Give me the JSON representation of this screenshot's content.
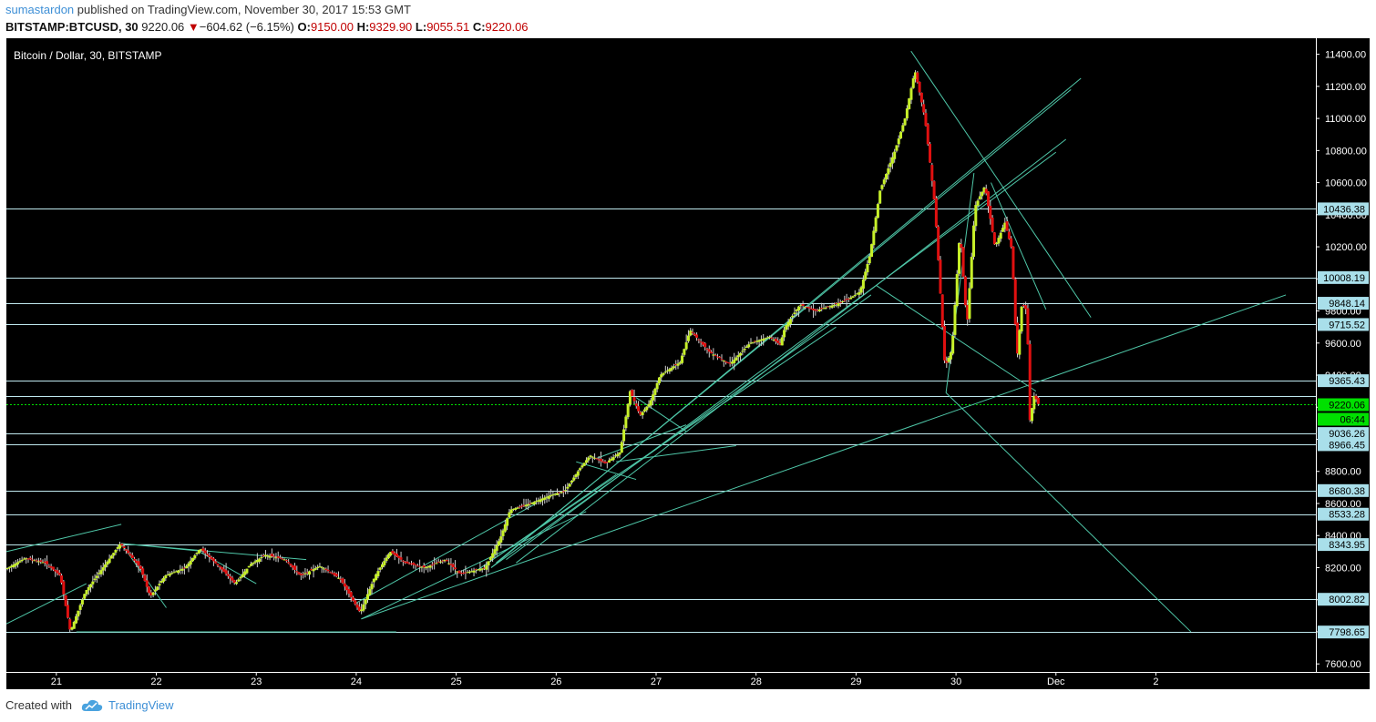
{
  "header": {
    "user": "sumastardon",
    "published_text": "published on TradingView.com, November 30, 2017 15:53 GMT",
    "symbol": "BITSTAMP:BTCUSD, 30",
    "last": "9220.06",
    "change_arrow": "▼",
    "change": "−604.62 (−6.15%)",
    "o_label": "O:",
    "o": "9150.00",
    "h_label": "H:",
    "h": "9329.90",
    "l_label": "L:",
    "l": "9055.51",
    "c_label": "C:",
    "c": "9220.06"
  },
  "footer": {
    "created_with": "Created with",
    "brand": "TradingView",
    "logo_icon": "tradingview-cloud-icon"
  },
  "colors": {
    "background": "#000000",
    "up_candle": "#c7f029",
    "down_candle": "#e01010",
    "wick": "#d0d0d0",
    "level_line": "#bfe8ee",
    "trend_line": "#4fc7a8",
    "price_tag": "#a9dfea",
    "current_price_tag": "#00e000"
  },
  "chart_data": {
    "type": "candlestick",
    "title": "Bitcoin / Dollar, 30, BITSTAMP",
    "ylim": [
      7550,
      11500
    ],
    "y_ticks": [
      7600,
      7800,
      8000,
      8200,
      8400,
      8600,
      8800,
      9000,
      9200,
      9400,
      9600,
      9800,
      10000,
      10200,
      10400,
      10600,
      10800,
      11000,
      11200,
      11400
    ],
    "y_tick_labels": [
      "7600.00",
      "7800.00",
      "8000.00",
      "8200.00",
      "8400.00",
      "8600.00",
      "8800.00",
      "9000.00",
      "9200.00",
      "9400.00",
      "9600.00",
      "9800.00",
      "10000.00",
      "10200.00",
      "10400.00",
      "10600.00",
      "10800.00",
      "11000.00",
      "11200.00",
      "11400.00"
    ],
    "x_labels": [
      "21",
      "22",
      "23",
      "24",
      "25",
      "26",
      "27",
      "28",
      "29",
      "30",
      "Dec",
      "2"
    ],
    "x_label_days": [
      21,
      22,
      23,
      24,
      25,
      26,
      27,
      28,
      29,
      30,
      31,
      32
    ],
    "xlim_days": [
      20.5,
      33.6
    ],
    "horizontal_levels": [
      10436.38,
      10008.19,
      9848.14,
      9715.52,
      9365.43,
      9267.34,
      9036.26,
      8966.45,
      8680.38,
      8533.28,
      8343.95,
      8002.82,
      7798.65
    ],
    "level_tags": [
      "10436.38",
      "10008.19",
      "9848.14",
      "9715.52",
      "9365.43",
      "9036.26",
      "8966.45",
      "8680.38",
      "8533.28",
      "8343.95",
      "8002.82",
      "7798.65"
    ],
    "current_price": 9220.06,
    "current_price_label": "9220.06",
    "countdown_label": "06:44",
    "price_path": [
      [
        20.5,
        8190
      ],
      [
        20.7,
        8260
      ],
      [
        20.9,
        8230
      ],
      [
        21.05,
        8150
      ],
      [
        21.15,
        7800
      ],
      [
        21.3,
        8050
      ],
      [
        21.5,
        8220
      ],
      [
        21.65,
        8350
      ],
      [
        21.85,
        8200
      ],
      [
        21.95,
        8020
      ],
      [
        22.1,
        8150
      ],
      [
        22.3,
        8200
      ],
      [
        22.45,
        8320
      ],
      [
        22.65,
        8200
      ],
      [
        22.8,
        8100
      ],
      [
        22.95,
        8220
      ],
      [
        23.1,
        8280
      ],
      [
        23.3,
        8250
      ],
      [
        23.45,
        8150
      ],
      [
        23.65,
        8210
      ],
      [
        23.85,
        8130
      ],
      [
        24.05,
        7920
      ],
      [
        24.2,
        8150
      ],
      [
        24.35,
        8300
      ],
      [
        24.5,
        8230
      ],
      [
        24.7,
        8200
      ],
      [
        24.9,
        8250
      ],
      [
        25.05,
        8160
      ],
      [
        25.3,
        8200
      ],
      [
        25.45,
        8380
      ],
      [
        25.55,
        8560
      ],
      [
        25.75,
        8600
      ],
      [
        25.95,
        8650
      ],
      [
        26.1,
        8680
      ],
      [
        26.25,
        8820
      ],
      [
        26.35,
        8900
      ],
      [
        26.5,
        8850
      ],
      [
        26.65,
        8920
      ],
      [
        26.75,
        9300
      ],
      [
        26.85,
        9150
      ],
      [
        26.95,
        9230
      ],
      [
        27.05,
        9400
      ],
      [
        27.25,
        9480
      ],
      [
        27.35,
        9680
      ],
      [
        27.55,
        9540
      ],
      [
        27.75,
        9470
      ],
      [
        27.95,
        9600
      ],
      [
        28.15,
        9640
      ],
      [
        28.25,
        9590
      ],
      [
        28.3,
        9700
      ],
      [
        28.45,
        9840
      ],
      [
        28.6,
        9800
      ],
      [
        28.8,
        9840
      ],
      [
        28.95,
        9880
      ],
      [
        29.05,
        9920
      ],
      [
        29.15,
        10150
      ],
      [
        29.25,
        10550
      ],
      [
        29.4,
        10800
      ],
      [
        29.5,
        11000
      ],
      [
        29.6,
        11300
      ],
      [
        29.7,
        11000
      ],
      [
        29.8,
        10450
      ],
      [
        29.9,
        9450
      ],
      [
        29.97,
        9560
      ],
      [
        30.05,
        10300
      ],
      [
        30.12,
        9700
      ],
      [
        30.2,
        10450
      ],
      [
        30.3,
        10580
      ],
      [
        30.4,
        10200
      ],
      [
        30.5,
        10350
      ],
      [
        30.57,
        10180
      ],
      [
        30.62,
        9500
      ],
      [
        30.67,
        9850
      ],
      [
        30.72,
        9800
      ],
      [
        30.75,
        9120
      ],
      [
        30.8,
        9300
      ],
      [
        30.82,
        9220.06
      ]
    ],
    "trend_lines": [
      [
        [
          20.5,
          8300
        ],
        [
          21.65,
          8470
        ]
      ],
      [
        [
          20.5,
          7850
        ],
        [
          21.3,
          8100
        ]
      ],
      [
        [
          21.65,
          8350
        ],
        [
          22.5,
          8300
        ]
      ],
      [
        [
          21.65,
          8350
        ],
        [
          23.5,
          8250
        ]
      ],
      [
        [
          21.65,
          8350
        ],
        [
          22.1,
          7950
        ]
      ],
      [
        [
          22.4,
          8310
        ],
        [
          23.0,
          8100
        ]
      ],
      [
        [
          21.2,
          7800
        ],
        [
          24.4,
          7800
        ]
      ],
      [
        [
          24.05,
          7880
        ],
        [
          26.3,
          8550
        ]
      ],
      [
        [
          24.05,
          7880
        ],
        [
          33.3,
          9900
        ]
      ],
      [
        [
          24.0,
          7980
        ],
        [
          25.8,
          8600
        ]
      ],
      [
        [
          25.2,
          8180
        ],
        [
          26.6,
          8780
        ]
      ],
      [
        [
          25.2,
          8180
        ],
        [
          28.8,
          9700
        ]
      ],
      [
        [
          25.35,
          8200
        ],
        [
          29.15,
          9900
        ]
      ],
      [
        [
          25.35,
          8200
        ],
        [
          31.25,
          11250
        ]
      ],
      [
        [
          25.4,
          8230
        ],
        [
          31.15,
          11180
        ]
      ],
      [
        [
          25.5,
          8250
        ],
        [
          31.0,
          10790
        ]
      ],
      [
        [
          25.6,
          8230
        ],
        [
          31.1,
          10870
        ]
      ],
      [
        [
          26.2,
          8860
        ],
        [
          26.8,
          8750
        ]
      ],
      [
        [
          26.4,
          8880
        ],
        [
          27.3,
          9090
        ]
      ],
      [
        [
          26.8,
          9260
        ],
        [
          27.3,
          9050
        ]
      ],
      [
        [
          26.6,
          8860
        ],
        [
          27.8,
          8960
        ]
      ],
      [
        [
          29.55,
          11420
        ],
        [
          31.35,
          9760
        ]
      ],
      [
        [
          29.2,
          9960
        ],
        [
          30.8,
          9300
        ]
      ],
      [
        [
          30.35,
          10600
        ],
        [
          30.9,
          9810
        ]
      ],
      [
        [
          29.9,
          9290
        ],
        [
          32.35,
          7800
        ]
      ],
      [
        [
          29.9,
          9290
        ],
        [
          30.18,
          10660
        ]
      ]
    ]
  }
}
